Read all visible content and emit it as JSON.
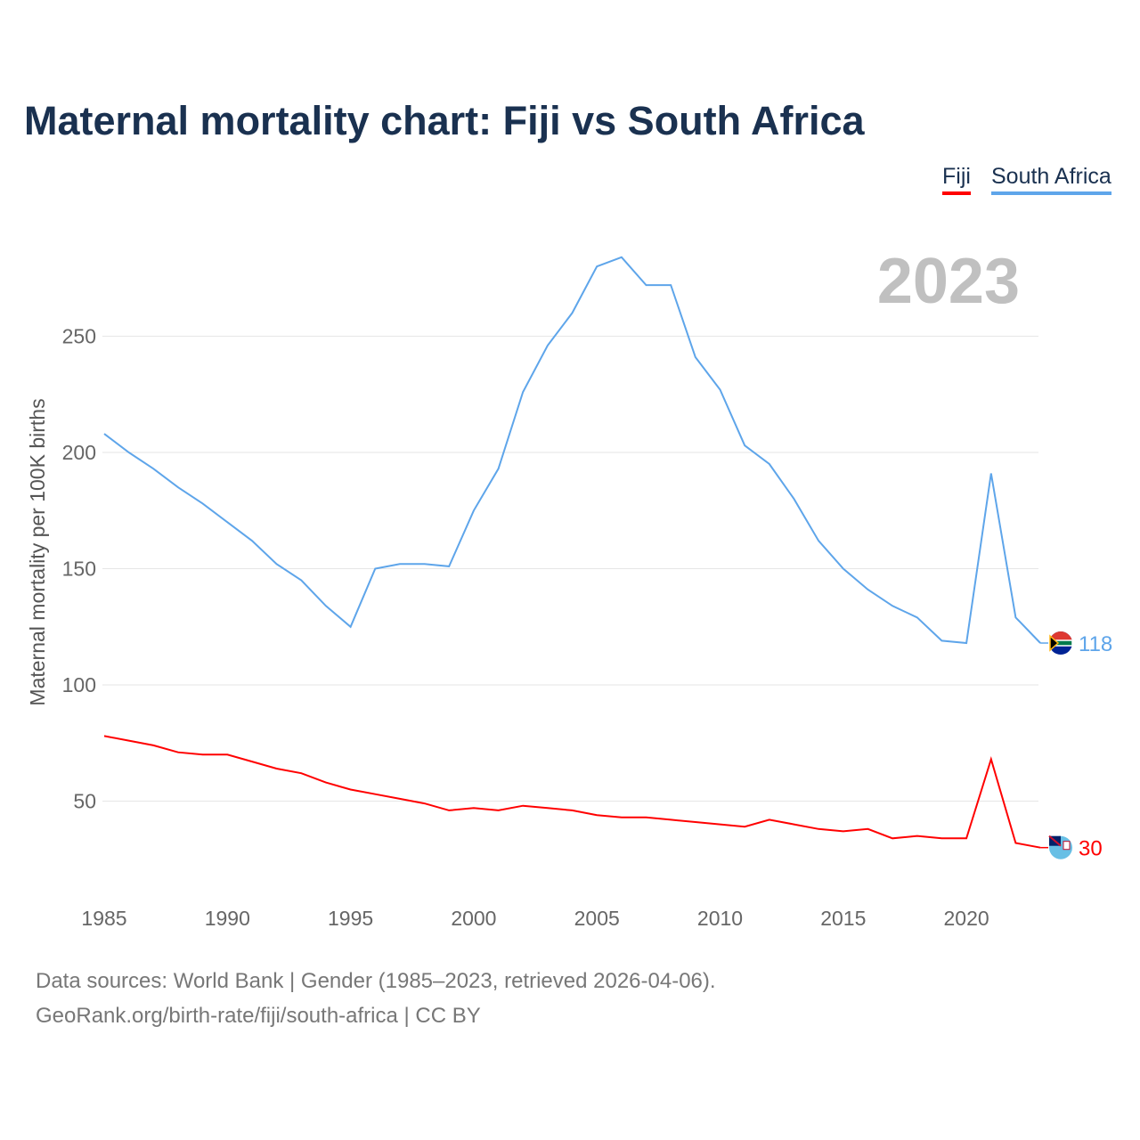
{
  "chart_data": {
    "type": "line",
    "title": "Maternal mortality chart: Fiji vs South Africa",
    "ylabel": "Maternal mortality per 100K births",
    "xlabel": "",
    "year_label": "2023",
    "x": [
      1985,
      1986,
      1987,
      1988,
      1989,
      1990,
      1991,
      1992,
      1993,
      1994,
      1995,
      1996,
      1997,
      1998,
      1999,
      2000,
      2001,
      2002,
      2003,
      2004,
      2005,
      2006,
      2007,
      2008,
      2009,
      2010,
      2011,
      2012,
      2013,
      2014,
      2015,
      2016,
      2017,
      2018,
      2019,
      2020,
      2021,
      2022,
      2023
    ],
    "xlim": [
      1985,
      2023
    ],
    "ylim": [
      0,
      290
    ],
    "x_ticks": [
      1985,
      1990,
      1995,
      2000,
      2005,
      2010,
      2015,
      2020
    ],
    "y_ticks": [
      50,
      100,
      150,
      200,
      250
    ],
    "grid": true,
    "legend_position": "top-right",
    "series": [
      {
        "name": "Fiji",
        "color": "#ff0000",
        "end_label": "30",
        "values": [
          78,
          76,
          74,
          71,
          70,
          70,
          67,
          64,
          62,
          58,
          55,
          53,
          51,
          49,
          46,
          47,
          46,
          48,
          47,
          46,
          44,
          43,
          43,
          42,
          41,
          40,
          39,
          42,
          40,
          38,
          37,
          38,
          34,
          35,
          34,
          34,
          68,
          32,
          30
        ]
      },
      {
        "name": "South Africa",
        "color": "#5ea5ea",
        "end_label": "118",
        "values": [
          208,
          200,
          193,
          185,
          178,
          170,
          162,
          152,
          145,
          134,
          125,
          150,
          152,
          152,
          151,
          175,
          193,
          226,
          246,
          260,
          280,
          284,
          272,
          272,
          241,
          227,
          203,
          195,
          180,
          162,
          150,
          141,
          134,
          129,
          119,
          118,
          191,
          129,
          118
        ]
      }
    ]
  },
  "footer": {
    "line1": "Data sources: World Bank | Gender (1985–2023, retrieved 2026-04-06).",
    "line2": "GeoRank.org/birth-rate/fiji/south-africa | CC BY"
  }
}
